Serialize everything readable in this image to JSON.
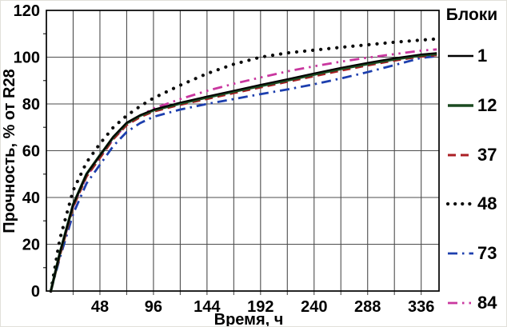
{
  "chart_data": {
    "type": "line",
    "title": "",
    "xlabel": "Время, ч",
    "ylabel": "Прочность, % от R28",
    "legend_title": "Блоки",
    "legend_position": "right",
    "grid": true,
    "xlim": [
      0,
      352
    ],
    "ylim": [
      0,
      120
    ],
    "x_ticks": [
      48,
      96,
      144,
      192,
      240,
      288,
      336
    ],
    "x_minor_step": 24,
    "y_ticks": [
      0,
      20,
      40,
      60,
      80,
      100,
      120
    ],
    "x": [
      4,
      12,
      24,
      36,
      48,
      60,
      72,
      84,
      96,
      120,
      144,
      168,
      192,
      216,
      240,
      264,
      288,
      312,
      336,
      350
    ],
    "series": [
      {
        "name": "1",
        "color": "#000000",
        "width": 2,
        "dash": "",
        "cap": "butt",
        "values": [
          0,
          16,
          37,
          50,
          58,
          66,
          72,
          75.2,
          77.6,
          80.6,
          83.2,
          85.7,
          88.2,
          90.6,
          93.1,
          95.5,
          97.6,
          99.6,
          101.2,
          101.8
        ]
      },
      {
        "name": "12",
        "color": "#1b4a21",
        "width": 3.4,
        "dash": "",
        "cap": "butt",
        "values": [
          0,
          16,
          37,
          50,
          58,
          65.8,
          71.8,
          75,
          77.3,
          80.2,
          82.8,
          85.3,
          87.7,
          90.1,
          92.6,
          95,
          97.1,
          99.1,
          100.8,
          101.4
        ]
      },
      {
        "name": "37",
        "color": "#ab1f24",
        "width": 3,
        "dash": "10 6",
        "cap": "butt",
        "values": [
          0,
          15,
          36,
          49,
          57,
          65,
          71,
          74.4,
          76.8,
          79.7,
          82.2,
          84.7,
          87.1,
          89.5,
          91.9,
          94.3,
          96.5,
          98.6,
          100.3,
          100.9
        ]
      },
      {
        "name": "48",
        "color": "#0d0d0d",
        "width": 4.2,
        "dash": "0.1 10",
        "cap": "round",
        "values": [
          0,
          22,
          43,
          55,
          63,
          70,
          75,
          79,
          82.5,
          88,
          93,
          97,
          100,
          101.8,
          103,
          104.2,
          105.3,
          106.4,
          107.3,
          107.8
        ]
      },
      {
        "name": "73",
        "color": "#1d3fae",
        "width": 2.8,
        "dash": "12 6 2.5 6",
        "cap": "butt",
        "values": [
          0,
          14,
          33,
          46,
          54,
          62,
          68,
          71.8,
          74.5,
          77.6,
          80,
          82.1,
          84.2,
          86.2,
          88.4,
          90.9,
          93.6,
          96.6,
          99.7,
          100.4
        ]
      },
      {
        "name": "84",
        "color": "#c9379f",
        "width": 2.8,
        "dash": "12 6 2.5 6 2.5 6",
        "cap": "butt",
        "values": [
          0,
          15,
          36,
          49,
          57,
          65,
          71.3,
          75,
          78,
          82.1,
          85.6,
          88.6,
          91.3,
          93.9,
          96.1,
          98.1,
          99.8,
          101.3,
          102.8,
          103.3
        ]
      }
    ]
  }
}
